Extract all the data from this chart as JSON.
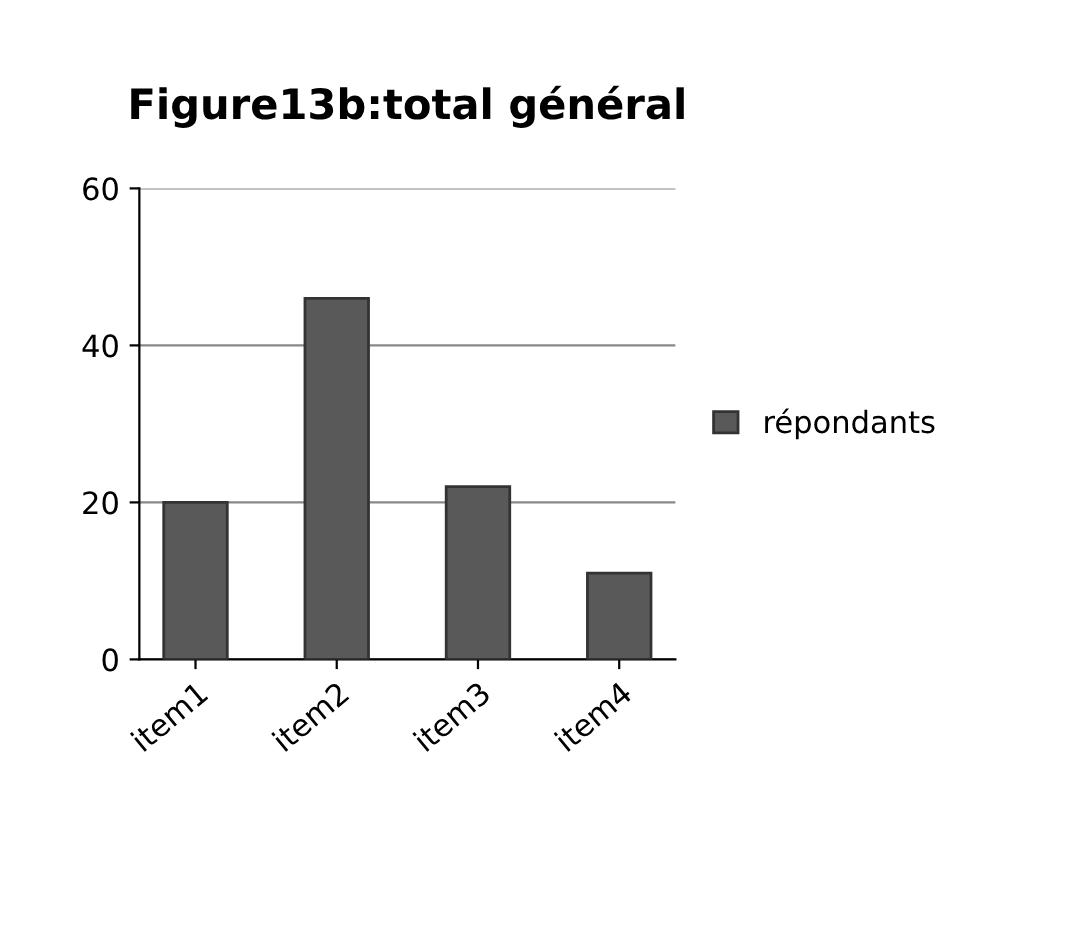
{
  "chart_data": {
    "type": "bar",
    "title": "Figure13b:total général",
    "categories": [
      "item1",
      "item2",
      "item3",
      "item4"
    ],
    "series": [
      {
        "name": "répondants",
        "color": "#595959",
        "values": [
          20,
          46,
          22,
          11
        ]
      }
    ],
    "ylim": [
      0,
      60
    ],
    "yticks": [
      0,
      20,
      40,
      60
    ],
    "grid": "y",
    "legend": "right"
  }
}
